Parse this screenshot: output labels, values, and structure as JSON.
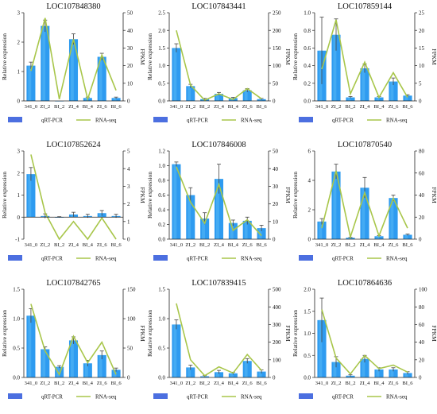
{
  "figure": {
    "colors": {
      "bar": "#2e9bf0",
      "bar_light": "#58b8f6",
      "line": "#a8c64a",
      "axis": "#222222",
      "legend_bar": "#4c6fe0"
    }
  },
  "chart_data": [
    {
      "type": "bar",
      "title": "LOC107848380",
      "categories": [
        "341_0",
        "ZI_2",
        "BI_2",
        "ZI_4",
        "BI_4",
        "ZI_6",
        "BI_6"
      ],
      "ylabel": "Relative expression",
      "y2label": "FPKM",
      "ylim": [
        0,
        3
      ],
      "yticks": [
        0,
        1,
        2,
        3
      ],
      "y2lim": [
        0,
        50
      ],
      "y2ticks": [
        0,
        10,
        20,
        30,
        40,
        50
      ],
      "series": [
        {
          "name": "qRT-PCR",
          "axis": "left",
          "kind": "bar",
          "values": [
            1.2,
            2.55,
            0.0,
            2.1,
            0.1,
            1.5,
            0.1
          ],
          "errors": [
            0.12,
            0.2,
            0.0,
            0.18,
            0.03,
            0.12,
            0.03
          ]
        },
        {
          "name": "RNA-seq",
          "axis": "right",
          "kind": "line",
          "values": [
            17,
            47,
            1,
            35,
            1,
            26,
            6
          ]
        }
      ]
    },
    {
      "type": "bar",
      "title": "LOC107843441",
      "categories": [
        "341_0",
        "ZI_2",
        "BI_2",
        "ZI_4",
        "BI_4",
        "ZI_6",
        "BI_6"
      ],
      "ylabel": "Relative expression",
      "y2label": "FPKM",
      "ylim": [
        0,
        2.5
      ],
      "yticks": [
        0.0,
        0.5,
        1.0,
        1.5,
        2.0,
        2.5
      ],
      "y2lim": [
        0,
        250
      ],
      "y2ticks": [
        0,
        50,
        100,
        150,
        200,
        250
      ],
      "series": [
        {
          "name": "qRT-PCR",
          "axis": "left",
          "kind": "bar",
          "values": [
            1.5,
            0.42,
            0.05,
            0.2,
            0.08,
            0.3,
            0.05
          ],
          "errors": [
            0.12,
            0.05,
            0.02,
            0.04,
            0.02,
            0.05,
            0.02
          ]
        },
        {
          "name": "RNA-seq",
          "axis": "right",
          "kind": "line",
          "values": [
            200,
            45,
            2,
            20,
            4,
            35,
            6
          ]
        }
      ]
    },
    {
      "type": "bar",
      "title": "LOC107859144",
      "categories": [
        "341_0",
        "ZI_2",
        "BI_2",
        "ZI_4",
        "BI_4",
        "ZI_6",
        "BI_6"
      ],
      "ylabel": "Relative expression",
      "y2label": "FPKM",
      "ylim": [
        0,
        1.0
      ],
      "yticks": [
        0.0,
        0.2,
        0.4,
        0.6,
        0.8,
        1.0
      ],
      "y2lim": [
        0,
        25
      ],
      "y2ticks": [
        0,
        5,
        10,
        15,
        20,
        25
      ],
      "series": [
        {
          "name": "qRT-PCR",
          "axis": "left",
          "kind": "bar",
          "values": [
            0.57,
            0.75,
            0.04,
            0.37,
            0.04,
            0.22,
            0.06
          ],
          "errors": [
            0.38,
            0.18,
            0.01,
            0.05,
            0.01,
            0.04,
            0.01
          ]
        },
        {
          "name": "RNA-seq",
          "axis": "right",
          "kind": "line",
          "values": [
            9,
            23,
            2,
            11,
            1,
            8,
            1
          ]
        }
      ]
    },
    {
      "type": "bar",
      "title": "LOC107852624",
      "categories": [
        "341_0",
        "ZI_2",
        "BI_2",
        "ZI_4",
        "BI_4",
        "ZI_6",
        "BI_6"
      ],
      "ylabel": "Relative expression",
      "y2label": "FPKM",
      "ylim": [
        -1,
        3
      ],
      "yticks": [
        -1,
        0,
        1,
        2,
        3
      ],
      "y2lim": [
        0,
        5
      ],
      "y2ticks": [
        0,
        1,
        2,
        3,
        4,
        5
      ],
      "series": [
        {
          "name": "qRT-PCR",
          "axis": "left",
          "kind": "bar",
          "values": [
            1.95,
            0.05,
            0.0,
            0.12,
            0.05,
            0.18,
            0.05
          ],
          "errors": [
            0.3,
            0.1,
            0.02,
            0.1,
            0.08,
            0.12,
            0.08
          ]
        },
        {
          "name": "RNA-seq",
          "axis": "right",
          "kind": "line",
          "values": [
            4.8,
            1.5,
            0.0,
            1.0,
            0.0,
            1.2,
            0.0
          ]
        }
      ]
    },
    {
      "type": "bar",
      "title": "LOC107846008",
      "categories": [
        "341_0",
        "ZI_2",
        "BI_2",
        "ZI_4",
        "BI_4",
        "ZI_6",
        "BI_6"
      ],
      "ylabel": "Relative expression",
      "y2label": "FPKM",
      "ylim": [
        0,
        1.2
      ],
      "yticks": [
        0.0,
        0.2,
        0.4,
        0.6,
        0.8,
        1.0,
        1.2
      ],
      "y2lim": [
        0,
        50
      ],
      "y2ticks": [
        0,
        10,
        20,
        30,
        40,
        50
      ],
      "series": [
        {
          "name": "qRT-PCR",
          "axis": "left",
          "kind": "bar",
          "values": [
            1.02,
            0.6,
            0.28,
            0.82,
            0.22,
            0.25,
            0.15
          ],
          "errors": [
            0.03,
            0.1,
            0.08,
            0.2,
            0.04,
            0.05,
            0.04
          ]
        },
        {
          "name": "RNA-seq",
          "axis": "right",
          "kind": "line",
          "values": [
            41,
            21,
            9,
            31,
            5,
            11,
            2
          ]
        }
      ]
    },
    {
      "type": "bar",
      "title": "LOC107870540",
      "categories": [
        "341_0",
        "ZI_2",
        "BI_2",
        "ZI_4",
        "BI_4",
        "ZI_6",
        "BI_6"
      ],
      "ylabel": "Relative expression",
      "y2label": "FPKM",
      "ylim": [
        0,
        6
      ],
      "yticks": [
        0,
        2,
        4,
        6
      ],
      "y2lim": [
        0,
        80
      ],
      "y2ticks": [
        0,
        20,
        40,
        60,
        80
      ],
      "series": [
        {
          "name": "qRT-PCR",
          "axis": "left",
          "kind": "bar",
          "values": [
            1.2,
            4.6,
            0.1,
            3.5,
            0.2,
            2.8,
            0.3
          ],
          "errors": [
            0.2,
            0.5,
            0.02,
            0.7,
            0.05,
            0.2,
            0.05
          ]
        },
        {
          "name": "RNA-seq",
          "axis": "right",
          "kind": "line",
          "values": [
            10,
            62,
            2,
            42,
            3,
            37,
            10
          ]
        }
      ]
    },
    {
      "type": "bar",
      "title": "LOC107842765",
      "categories": [
        "341_0",
        "ZI_2",
        "BI_2",
        "ZI_4",
        "BI_4",
        "ZI_6",
        "BI_6"
      ],
      "ylabel": "Relative expression",
      "y2label": "FPKM",
      "ylim": [
        0,
        1.5
      ],
      "yticks": [
        0.0,
        0.5,
        1.0,
        1.5
      ],
      "y2lim": [
        0,
        150
      ],
      "y2ticks": [
        0,
        50,
        100,
        150
      ],
      "series": [
        {
          "name": "qRT-PCR",
          "axis": "left",
          "kind": "bar",
          "values": [
            1.05,
            0.48,
            0.18,
            0.63,
            0.24,
            0.38,
            0.13
          ],
          "errors": [
            0.12,
            0.04,
            0.02,
            0.06,
            0.05,
            0.07,
            0.03
          ]
        },
        {
          "name": "RNA-seq",
          "axis": "right",
          "kind": "line",
          "values": [
            125,
            45,
            5,
            70,
            25,
            60,
            5
          ]
        }
      ]
    },
    {
      "type": "bar",
      "title": "LOC107839415",
      "categories": [
        "341_0",
        "ZI_2",
        "BI_2",
        "ZI_4",
        "BI_4",
        "ZI_6",
        "BI_6"
      ],
      "ylabel": "Relative expression",
      "y2label": "FPKM",
      "ylim": [
        0,
        1.5
      ],
      "yticks": [
        0.0,
        0.5,
        1.0,
        1.5
      ],
      "y2lim": [
        0,
        500
      ],
      "y2ticks": [
        0,
        100,
        200,
        300,
        400,
        500
      ],
      "series": [
        {
          "name": "qRT-PCR",
          "axis": "left",
          "kind": "bar",
          "values": [
            0.9,
            0.17,
            0.02,
            0.09,
            0.07,
            0.28,
            0.1
          ],
          "errors": [
            0.08,
            0.04,
            0.01,
            0.03,
            0.02,
            0.04,
            0.03
          ]
        },
        {
          "name": "RNA-seq",
          "axis": "right",
          "kind": "line",
          "values": [
            420,
            100,
            10,
            60,
            25,
            130,
            40
          ]
        }
      ]
    },
    {
      "type": "bar",
      "title": "LOC107864636",
      "categories": [
        "341_0",
        "ZI_2",
        "BI_2",
        "ZI_4",
        "BI_4",
        "ZI_6",
        "BI_6"
      ],
      "ylabel": "Relative expression",
      "y2label": "FPKM",
      "ylim": [
        0,
        2.0
      ],
      "yticks": [
        0.0,
        0.5,
        1.0,
        1.5,
        2.0
      ],
      "y2lim": [
        0,
        100
      ],
      "y2ticks": [
        0,
        20,
        40,
        60,
        80,
        100
      ],
      "series": [
        {
          "name": "qRT-PCR",
          "axis": "left",
          "kind": "bar",
          "values": [
            1.3,
            0.35,
            0.04,
            0.42,
            0.18,
            0.18,
            0.1
          ],
          "errors": [
            0.5,
            0.12,
            0.02,
            0.08,
            0.04,
            0.04,
            0.03
          ]
        },
        {
          "name": "RNA-seq",
          "axis": "right",
          "kind": "line",
          "values": [
            77,
            22,
            4,
            25,
            10,
            14,
            6
          ]
        }
      ]
    }
  ]
}
